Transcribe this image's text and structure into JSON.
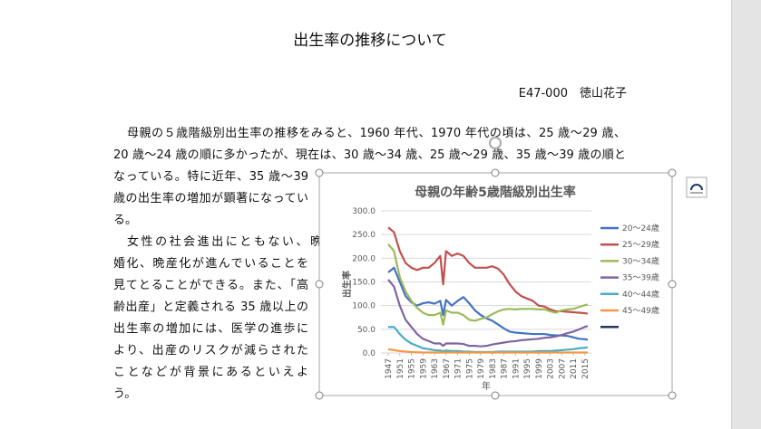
{
  "document": {
    "title": "出生率の推移について",
    "author": "E47-000　徳山花子",
    "paragraphs": [
      {
        "lines": [
          "母親の５歳階級別出生率の推移をみると、1960 年代、1970 年代の頃は、25 歳～29 歳、",
          "20 歳～24 歳の順に多かったが、現在は、30 歳～34 歳、25 歳～29 歳、35 歳～39 歳の順と",
          "なっている。特に近年、35 歳～39",
          "歳の出生率の増加が顕著になってい",
          "る。"
        ]
      },
      {
        "lines": [
          "女性の社会進出にともない、晩",
          "婚化、晩産化が進んでいることを",
          "見てとることができる。また、「高",
          "齢出産」と定義される 35 歳以上の",
          "出生率の増加には、医学の進歩に",
          "より、出産のリスクが減らされた",
          "ことなどが背景にあるといえよ",
          "う。"
        ]
      }
    ]
  },
  "chart_data": {
    "type": "line",
    "title": "母親の年齢5歳階級別出生率",
    "x_label": "年",
    "y_label": "出生率",
    "x": [
      1947,
      1949,
      1951,
      1953,
      1955,
      1957,
      1959,
      1961,
      1963,
      1965,
      1966,
      1967,
      1969,
      1971,
      1973,
      1975,
      1977,
      1979,
      1981,
      1983,
      1985,
      1987,
      1989,
      1991,
      1993,
      1995,
      1997,
      1999,
      2001,
      2003,
      2005,
      2007,
      2009,
      2011,
      2013,
      2015,
      2016
    ],
    "xlim": [
      1947,
      2016
    ],
    "xticks": [
      1947,
      1951,
      1955,
      1959,
      1963,
      1967,
      1971,
      1975,
      1979,
      1983,
      1987,
      1991,
      1995,
      1999,
      2003,
      2007,
      2011,
      2015
    ],
    "ylim": [
      0,
      300
    ],
    "yticks": [
      {
        "value": 0,
        "label": "0.0"
      },
      {
        "value": 50,
        "label": "50.0"
      },
      {
        "value": 100,
        "label": "100.0"
      },
      {
        "value": 150,
        "label": "150.0"
      },
      {
        "value": 200,
        "label": "200.0"
      },
      {
        "value": 250,
        "label": "250.0"
      },
      {
        "value": 300,
        "label": "300.0"
      }
    ],
    "grid": true,
    "legend": "right",
    "series": [
      {
        "name": "20～24歳",
        "color": "#4472c4",
        "values": [
          170,
          180,
          150,
          120,
          107,
          100,
          105,
          107,
          104,
          110,
          80,
          112,
          100,
          110,
          118,
          105,
          90,
          80,
          73,
          68,
          60,
          52,
          45,
          43,
          42,
          41,
          40,
          40,
          40,
          38,
          37,
          37,
          36,
          33,
          30,
          29,
          28
        ]
      },
      {
        "name": "25～29歳",
        "color": "#c0504d",
        "values": [
          265,
          255,
          215,
          190,
          180,
          175,
          180,
          180,
          190,
          205,
          145,
          215,
          205,
          210,
          205,
          190,
          180,
          180,
          180,
          183,
          178,
          165,
          145,
          130,
          120,
          115,
          110,
          100,
          98,
          92,
          88,
          88,
          87,
          86,
          85,
          84,
          83
        ]
      },
      {
        "name": "30～34歳",
        "color": "#9bbb59",
        "values": [
          230,
          215,
          160,
          130,
          110,
          95,
          85,
          80,
          80,
          85,
          60,
          90,
          85,
          85,
          80,
          70,
          68,
          72,
          75,
          82,
          88,
          92,
          93,
          92,
          93,
          93,
          93,
          92,
          92,
          88,
          85,
          90,
          92,
          93,
          97,
          101,
          102
        ]
      },
      {
        "name": "35～39歳",
        "color": "#8064a2",
        "values": [
          155,
          140,
          100,
          70,
          55,
          40,
          30,
          25,
          20,
          20,
          15,
          20,
          20,
          20,
          19,
          15,
          15,
          14,
          15,
          18,
          20,
          22,
          24,
          25,
          27,
          28,
          29,
          30,
          32,
          33,
          35,
          38,
          42,
          45,
          50,
          55,
          57
        ]
      },
      {
        "name": "40～44歳",
        "color": "#4bacc6",
        "values": [
          55,
          55,
          40,
          28,
          20,
          15,
          10,
          8,
          6,
          5,
          4,
          5,
          4,
          4,
          3,
          3,
          2,
          2,
          2,
          2,
          3,
          3,
          3,
          3,
          3,
          3,
          3,
          4,
          4,
          4,
          5,
          6,
          7,
          8,
          10,
          11,
          12
        ]
      },
      {
        "name": "45～49歳",
        "color": "#f79646",
        "values": [
          8,
          6,
          4,
          3,
          2,
          1.5,
          1,
          1,
          1,
          1,
          1,
          1,
          1,
          1,
          1,
          1,
          1,
          1,
          1,
          1,
          1,
          1,
          1,
          1,
          1,
          1,
          1,
          1,
          1,
          1,
          1,
          1,
          1,
          1,
          1,
          1,
          1
        ]
      },
      {
        "name": null,
        "color": "#1f3864",
        "values": [
          null,
          null,
          null,
          null,
          null,
          null,
          null,
          null,
          null,
          null,
          null,
          null,
          null,
          null,
          null,
          null,
          null,
          null,
          null,
          null,
          null,
          null,
          null,
          null,
          null,
          null,
          null,
          null,
          null,
          null,
          null,
          null,
          null,
          null,
          null,
          null,
          null
        ]
      }
    ]
  }
}
